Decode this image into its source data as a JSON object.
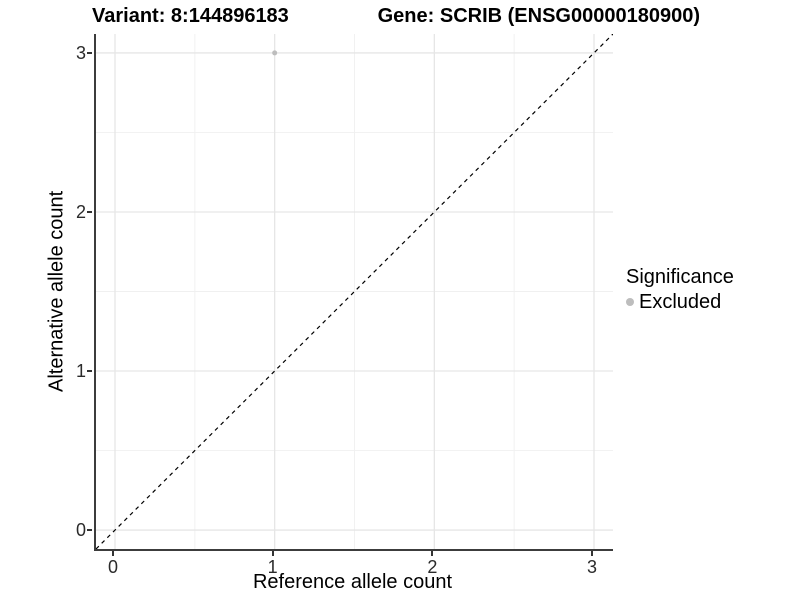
{
  "title": {
    "variant": "Variant: 8:144896183",
    "gene": "Gene: SCRIB (ENSG00000180900)"
  },
  "chart_data": {
    "type": "scatter",
    "title_left": "Variant: 8:144896183",
    "title_right": "Gene: SCRIB (ENSG00000180900)",
    "xlabel": "Reference allele count",
    "ylabel": "Alternative allele count",
    "x_ticks": [
      0,
      1,
      2,
      3
    ],
    "y_ticks": [
      0,
      1,
      2,
      3
    ],
    "x_minor_ticks": [
      0.5,
      1.5,
      2.5
    ],
    "y_minor_ticks": [
      0.5,
      1.5,
      2.5
    ],
    "xlim": [
      -0.119,
      3.119
    ],
    "ylim": [
      -0.119,
      3.119
    ],
    "grid": "major+minor",
    "legend_position": "right",
    "reference_line": {
      "kind": "identity",
      "slope": 1,
      "intercept": 0,
      "style": "dashed",
      "color": "#000000"
    },
    "points": [
      {
        "x": 1,
        "y": 3,
        "significance": "Excluded"
      }
    ],
    "legend": {
      "title": "Significance",
      "entries": [
        {
          "label": "Excluded",
          "color": "#BDBDBD"
        }
      ]
    },
    "colors": {
      "background": "#FFFFFF",
      "major_grid": "#E6E6E6",
      "minor_grid": "#F0F0F0",
      "axis_line": "#3C3C3C",
      "tick_text": "#2B2B2B",
      "point_excluded": "#BDBDBD"
    }
  }
}
